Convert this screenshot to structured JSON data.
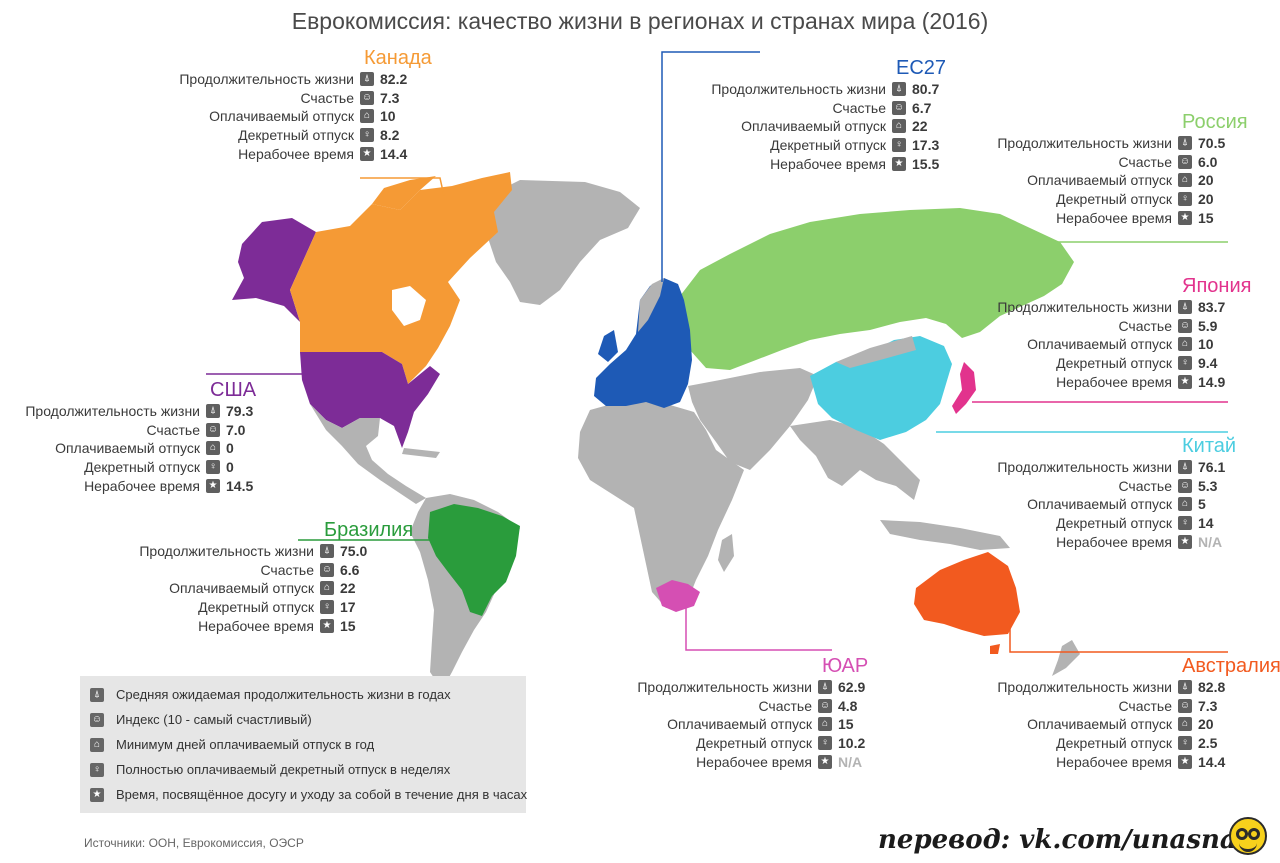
{
  "title": "Еврокомиссия: качество жизни в регионах и странах мира (2016)",
  "metric_labels": [
    "Продолжительность жизни",
    "Счастье",
    "Оплачиваемый отпуск",
    "Декретный отпуск",
    "Нерабочее время"
  ],
  "icons": [
    "person-icon",
    "smiley-icon",
    "vacation-icon",
    "maternity-icon",
    "leisure-icon"
  ],
  "regions": [
    {
      "key": "canada",
      "name": "Канада",
      "color": "#f59a35",
      "values": [
        "82.2",
        "7.3",
        "10",
        "8.2",
        "14.4"
      ]
    },
    {
      "key": "eu27",
      "name": "ЕС27",
      "color": "#1e5ab6",
      "values": [
        "80.7",
        "6.7",
        "22",
        "17.3",
        "15.5"
      ]
    },
    {
      "key": "russia",
      "name": "Россия",
      "color": "#8ccf6c",
      "values": [
        "70.5",
        "6.0",
        "20",
        "20",
        "15"
      ]
    },
    {
      "key": "japan",
      "name": "Япония",
      "color": "#e2338d",
      "values": [
        "83.7",
        "5.9",
        "10",
        "9.4",
        "14.9"
      ]
    },
    {
      "key": "usa",
      "name": "США",
      "color": "#7d2c97",
      "values": [
        "79.3",
        "7.0",
        "0",
        "0",
        "14.5"
      ]
    },
    {
      "key": "china",
      "name": "Китай",
      "color": "#4ccde0",
      "values": [
        "76.1",
        "5.3",
        "5",
        "14",
        "N/A"
      ]
    },
    {
      "key": "brazil",
      "name": "Бразилия",
      "color": "#2a9c3c",
      "values": [
        "75.0",
        "6.6",
        "22",
        "17",
        "15"
      ]
    },
    {
      "key": "south_africa",
      "name": "ЮАР",
      "color": "#d54fb3",
      "values": [
        "62.9",
        "4.8",
        "15",
        "10.2",
        "N/A"
      ]
    },
    {
      "key": "australia",
      "name": "Австралия",
      "color": "#f25a1f",
      "values": [
        "82.8",
        "7.3",
        "20",
        "2.5",
        "14.4"
      ]
    }
  ],
  "legend": [
    "Средняя ожидаемая продолжительность жизни в годах",
    "Индекс (10 - самый счастливый)",
    "Минимум дней оплачиваемый отпуск в год",
    "Полностью оплачиваемый декретный отпуск в неделях",
    "Время, посвящённое досугу и уходу за собой в течение дня в часах"
  ],
  "sources": "Источники: ООН, Еврокомиссия, ОЭСР",
  "credit": "перевод: vk.com/unasnar"
}
